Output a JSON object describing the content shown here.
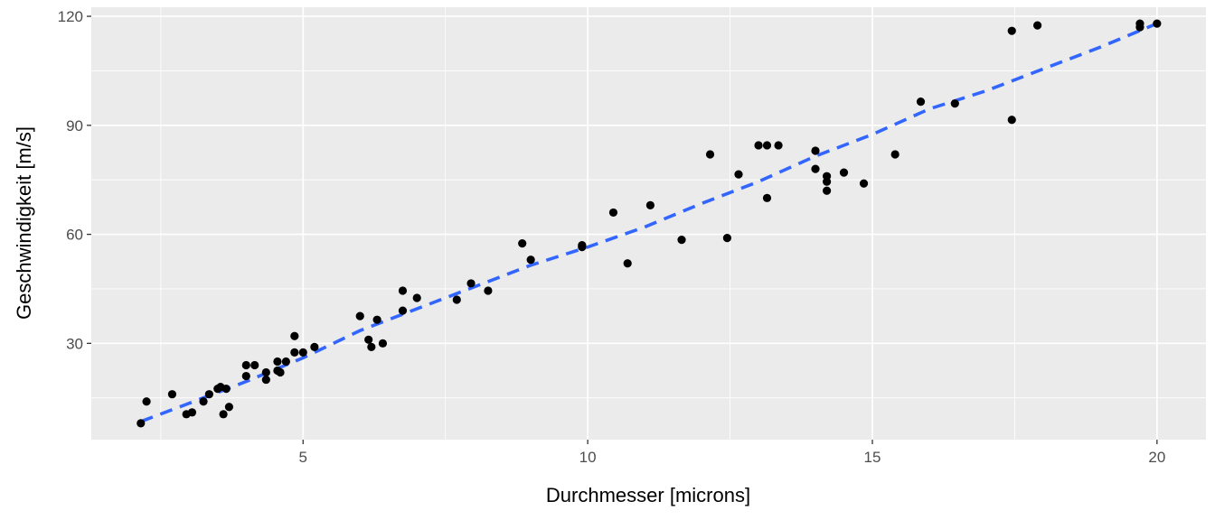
{
  "colors": {
    "panel_background": "#ebebeb",
    "grid_major": "#ffffff",
    "point": "#000000",
    "smooth_line": "#3366ff",
    "tick_text": "#4d4d4d",
    "axis_title_text": "#000000"
  },
  "chart_data": {
    "type": "scatter",
    "title": "",
    "xlabel": "Durchmesser [microns]",
    "ylabel": "Geschwindigkeit [m/s]",
    "xlim": [
      1.28,
      20.86
    ],
    "ylim": [
      3.5,
      122.5
    ],
    "x_ticks": [
      5,
      10,
      15,
      20
    ],
    "y_ticks": [
      30,
      60,
      90,
      120
    ],
    "x_tick_labels": [
      "5",
      "10",
      "15",
      "20"
    ],
    "y_tick_labels": [
      "30",
      "60",
      "90",
      "120"
    ],
    "grid": true,
    "legend": "none",
    "points": [
      {
        "x": 2.15,
        "y": 8.0
      },
      {
        "x": 2.25,
        "y": 14.0
      },
      {
        "x": 2.7,
        "y": 16.0
      },
      {
        "x": 2.95,
        "y": 10.5
      },
      {
        "x": 3.05,
        "y": 11.0
      },
      {
        "x": 3.25,
        "y": 14.0
      },
      {
        "x": 3.35,
        "y": 16.0
      },
      {
        "x": 3.5,
        "y": 17.5
      },
      {
        "x": 3.55,
        "y": 18.0
      },
      {
        "x": 3.6,
        "y": 10.5
      },
      {
        "x": 3.65,
        "y": 17.5
      },
      {
        "x": 3.7,
        "y": 12.5
      },
      {
        "x": 4.0,
        "y": 21.0
      },
      {
        "x": 4.0,
        "y": 24.0
      },
      {
        "x": 4.15,
        "y": 24.0
      },
      {
        "x": 4.35,
        "y": 20.0
      },
      {
        "x": 4.35,
        "y": 22.0
      },
      {
        "x": 4.55,
        "y": 25.0
      },
      {
        "x": 4.55,
        "y": 22.5
      },
      {
        "x": 4.6,
        "y": 22.0
      },
      {
        "x": 4.7,
        "y": 25.0
      },
      {
        "x": 4.85,
        "y": 27.5
      },
      {
        "x": 4.85,
        "y": 32.0
      },
      {
        "x": 5.0,
        "y": 27.5
      },
      {
        "x": 5.2,
        "y": 29.0
      },
      {
        "x": 6.0,
        "y": 37.5
      },
      {
        "x": 6.15,
        "y": 31.0
      },
      {
        "x": 6.2,
        "y": 29.0
      },
      {
        "x": 6.3,
        "y": 36.5
      },
      {
        "x": 6.4,
        "y": 30.0
      },
      {
        "x": 6.75,
        "y": 39.0
      },
      {
        "x": 6.75,
        "y": 44.5
      },
      {
        "x": 7.0,
        "y": 42.5
      },
      {
        "x": 7.7,
        "y": 42.0
      },
      {
        "x": 7.95,
        "y": 46.5
      },
      {
        "x": 8.25,
        "y": 44.5
      },
      {
        "x": 8.85,
        "y": 57.5
      },
      {
        "x": 9.0,
        "y": 53.0
      },
      {
        "x": 9.9,
        "y": 57.0
      },
      {
        "x": 9.9,
        "y": 56.5
      },
      {
        "x": 10.45,
        "y": 66.0
      },
      {
        "x": 10.7,
        "y": 52.0
      },
      {
        "x": 11.1,
        "y": 68.0
      },
      {
        "x": 11.65,
        "y": 58.5
      },
      {
        "x": 12.15,
        "y": 82.0
      },
      {
        "x": 12.45,
        "y": 59.0
      },
      {
        "x": 12.65,
        "y": 76.5
      },
      {
        "x": 13.0,
        "y": 84.5
      },
      {
        "x": 13.15,
        "y": 84.5
      },
      {
        "x": 13.35,
        "y": 84.5
      },
      {
        "x": 13.15,
        "y": 70.0
      },
      {
        "x": 14.0,
        "y": 83.0
      },
      {
        "x": 14.0,
        "y": 78.0
      },
      {
        "x": 14.2,
        "y": 76.0
      },
      {
        "x": 14.2,
        "y": 74.5
      },
      {
        "x": 14.2,
        "y": 72.0
      },
      {
        "x": 14.5,
        "y": 77.0
      },
      {
        "x": 14.85,
        "y": 74.0
      },
      {
        "x": 15.4,
        "y": 82.0
      },
      {
        "x": 15.85,
        "y": 96.5
      },
      {
        "x": 16.45,
        "y": 96.0
      },
      {
        "x": 17.45,
        "y": 116.0
      },
      {
        "x": 17.45,
        "y": 91.5
      },
      {
        "x": 17.9,
        "y": 117.5
      },
      {
        "x": 19.7,
        "y": 118.0
      },
      {
        "x": 19.7,
        "y": 117.0
      },
      {
        "x": 20.0,
        "y": 118.0
      }
    ],
    "smooth_line": {
      "style": "dashed",
      "x": [
        2.15,
        3.0,
        4.0,
        5.0,
        6.0,
        7.0,
        8.0,
        9.0,
        10.0,
        11.0,
        12.0,
        13.0,
        14.0,
        15.0,
        16.0,
        17.0,
        18.0,
        19.0,
        20.0
      ],
      "y": [
        8.5,
        13.5,
        19.5,
        26.0,
        33.5,
        39.5,
        45.5,
        51.5,
        56.5,
        62.0,
        68.5,
        74.5,
        81.5,
        87.5,
        94.5,
        99.5,
        105.5,
        111.5,
        118.0
      ]
    }
  }
}
